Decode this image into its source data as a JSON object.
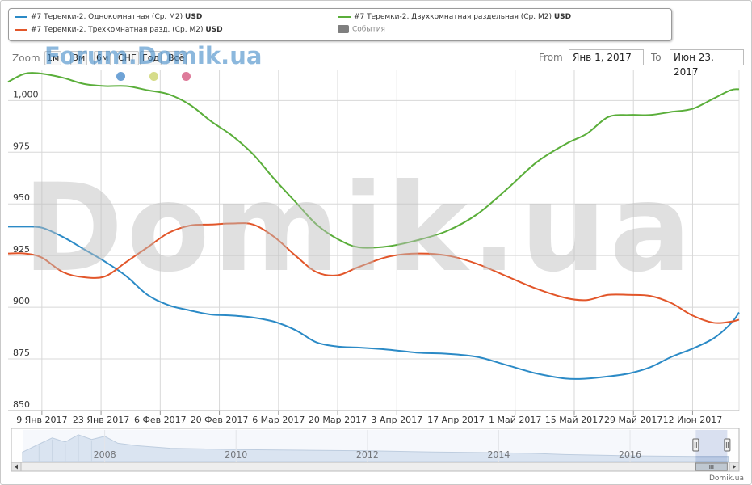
{
  "legend": {
    "items": [
      {
        "label": "#7 Теремки-2, Однокомнатная (Ср. M2)",
        "unit": "USD",
        "color": "#2b8ac6"
      },
      {
        "label": "#7 Теремки-2, Двухкомнатная раздельная (Ср. M2)",
        "unit": "USD",
        "color": "#5aae3a"
      },
      {
        "label": "#7 Теремки-2, Трехкомнатная разд. (Ср. M2)",
        "unit": "USD",
        "color": "#e2562a"
      },
      {
        "label": "События",
        "unit": "",
        "color": "#7f7f7f"
      }
    ]
  },
  "toolbar": {
    "zoom_label": "Zoom",
    "buttons": [
      "1м",
      "3м",
      "6м",
      "СНГ",
      "Год",
      "Всё"
    ],
    "from_label": "From",
    "from_value": "Янв 1, 2017",
    "to_label": "To",
    "to_value": "Июн 23, 2017"
  },
  "watermarks": {
    "forum": "Forum.Domik.ua",
    "big": "Domik.ua"
  },
  "event_dots": [
    {
      "color": "#6fa3d6"
    },
    {
      "color": "#d6dc8a"
    },
    {
      "color": "#de7b9a"
    }
  ],
  "credit": "Domik.ua",
  "chart_data": {
    "type": "line",
    "ylim": [
      850,
      1015
    ],
    "y_ticks": [
      850,
      875,
      900,
      925,
      950,
      975,
      1000
    ],
    "y_tick_labels": [
      "850",
      "875",
      "900",
      "925",
      "950",
      "975",
      "1,000"
    ],
    "x_range": [
      "2017-01-01",
      "2017-06-23"
    ],
    "x_ticks": [
      {
        "date": "2017-01-09",
        "label": "9 Янв 2017"
      },
      {
        "date": "2017-01-23",
        "label": "23 Янв 2017"
      },
      {
        "date": "2017-02-06",
        "label": "6 Фев 2017"
      },
      {
        "date": "2017-02-20",
        "label": "20 Фев 2017"
      },
      {
        "date": "2017-03-06",
        "label": "6 Мар 2017"
      },
      {
        "date": "2017-03-20",
        "label": "20 Мар 2017"
      },
      {
        "date": "2017-04-03",
        "label": "3 Апр 2017"
      },
      {
        "date": "2017-04-17",
        "label": "17 Апр 2017"
      },
      {
        "date": "2017-05-01",
        "label": "1 Май 2017"
      },
      {
        "date": "2017-05-15",
        "label": "15 Май 2017"
      },
      {
        "date": "2017-05-29",
        "label": "29 Май 2017"
      },
      {
        "date": "2017-06-12",
        "label": "12 Июн 2017"
      }
    ],
    "series": [
      {
        "name": "#7 Теремки-2, Однокомнатная (Ср. M2) USD",
        "color": "#2b8ac6",
        "points": [
          [
            "2017-01-01",
            939
          ],
          [
            "2017-01-05",
            939
          ],
          [
            "2017-01-09",
            938.5
          ],
          [
            "2017-01-14",
            934
          ],
          [
            "2017-01-19",
            928
          ],
          [
            "2017-01-24",
            922
          ],
          [
            "2017-01-29",
            915
          ],
          [
            "2017-02-03",
            906
          ],
          [
            "2017-02-08",
            901
          ],
          [
            "2017-02-13",
            898.5
          ],
          [
            "2017-02-18",
            896.5
          ],
          [
            "2017-02-23",
            896
          ],
          [
            "2017-02-28",
            895
          ],
          [
            "2017-03-05",
            893
          ],
          [
            "2017-03-10",
            889
          ],
          [
            "2017-03-15",
            883
          ],
          [
            "2017-03-20",
            881
          ],
          [
            "2017-03-25",
            880.5
          ],
          [
            "2017-04-01",
            879.5
          ],
          [
            "2017-04-08",
            878
          ],
          [
            "2017-04-15",
            877.5
          ],
          [
            "2017-04-22",
            876
          ],
          [
            "2017-04-29",
            872
          ],
          [
            "2017-05-06",
            868
          ],
          [
            "2017-05-13",
            865.5
          ],
          [
            "2017-05-18",
            865.5
          ],
          [
            "2017-05-23",
            866.5
          ],
          [
            "2017-05-28",
            868
          ],
          [
            "2017-06-02",
            871
          ],
          [
            "2017-06-07",
            876
          ],
          [
            "2017-06-12",
            880
          ],
          [
            "2017-06-17",
            885
          ],
          [
            "2017-06-21",
            892
          ],
          [
            "2017-06-23",
            897.5
          ]
        ]
      },
      {
        "name": "#7 Теремки-2, Двухкомнатная раздельная (Ср. M2) USD",
        "color": "#5aae3a",
        "points": [
          [
            "2017-01-01",
            1009
          ],
          [
            "2017-01-05",
            1013
          ],
          [
            "2017-01-09",
            1013
          ],
          [
            "2017-01-14",
            1011
          ],
          [
            "2017-01-19",
            1008
          ],
          [
            "2017-01-24",
            1007
          ],
          [
            "2017-01-29",
            1007
          ],
          [
            "2017-02-03",
            1005
          ],
          [
            "2017-02-08",
            1003
          ],
          [
            "2017-02-13",
            998
          ],
          [
            "2017-02-18",
            990
          ],
          [
            "2017-02-23",
            983
          ],
          [
            "2017-02-28",
            974
          ],
          [
            "2017-03-05",
            962
          ],
          [
            "2017-03-10",
            951
          ],
          [
            "2017-03-15",
            940
          ],
          [
            "2017-03-20",
            933
          ],
          [
            "2017-03-25",
            929
          ],
          [
            "2017-04-01",
            929.5
          ],
          [
            "2017-04-08",
            932.5
          ],
          [
            "2017-04-15",
            937
          ],
          [
            "2017-04-22",
            945
          ],
          [
            "2017-04-29",
            957
          ],
          [
            "2017-05-06",
            970
          ],
          [
            "2017-05-13",
            979
          ],
          [
            "2017-05-18",
            984
          ],
          [
            "2017-05-23",
            992
          ],
          [
            "2017-05-28",
            993
          ],
          [
            "2017-06-02",
            993
          ],
          [
            "2017-06-07",
            994.5
          ],
          [
            "2017-06-12",
            996
          ],
          [
            "2017-06-17",
            1001
          ],
          [
            "2017-06-21",
            1005
          ],
          [
            "2017-06-23",
            1005.5
          ]
        ]
      },
      {
        "name": "#7 Теремки-2, Трехкомнатная разд. (Ср. M2) USD",
        "color": "#e2562a",
        "points": [
          [
            "2017-01-01",
            926
          ],
          [
            "2017-01-05",
            926
          ],
          [
            "2017-01-09",
            924
          ],
          [
            "2017-01-14",
            917
          ],
          [
            "2017-01-19",
            914.5
          ],
          [
            "2017-01-24",
            915
          ],
          [
            "2017-01-29",
            922
          ],
          [
            "2017-02-03",
            929
          ],
          [
            "2017-02-08",
            936
          ],
          [
            "2017-02-13",
            939.5
          ],
          [
            "2017-02-18",
            940
          ],
          [
            "2017-02-23",
            940.5
          ],
          [
            "2017-02-28",
            940
          ],
          [
            "2017-03-05",
            934
          ],
          [
            "2017-03-10",
            925
          ],
          [
            "2017-03-15",
            917
          ],
          [
            "2017-03-20",
            915.5
          ],
          [
            "2017-03-25",
            919.5
          ],
          [
            "2017-04-01",
            924.5
          ],
          [
            "2017-04-08",
            926
          ],
          [
            "2017-04-15",
            925
          ],
          [
            "2017-04-22",
            921
          ],
          [
            "2017-04-29",
            915
          ],
          [
            "2017-05-06",
            909
          ],
          [
            "2017-05-13",
            904.5
          ],
          [
            "2017-05-18",
            903.5
          ],
          [
            "2017-05-23",
            906
          ],
          [
            "2017-05-28",
            906
          ],
          [
            "2017-06-02",
            905.5
          ],
          [
            "2017-06-07",
            902
          ],
          [
            "2017-06-12",
            896
          ],
          [
            "2017-06-17",
            892.5
          ],
          [
            "2017-06-21",
            893
          ],
          [
            "2017-06-23",
            894
          ]
        ]
      }
    ],
    "navigator": {
      "year_labels": [
        "2008",
        "2010",
        "2012",
        "2014",
        "2016"
      ],
      "x_range": [
        2006.75,
        2017.5
      ],
      "selection": [
        2017.0,
        2017.48
      ],
      "profile": [
        [
          2006.75,
          0.3
        ],
        [
          2007.0,
          0.55
        ],
        [
          2007.2,
          0.75
        ],
        [
          2007.4,
          0.62
        ],
        [
          2007.6,
          0.85
        ],
        [
          2007.8,
          0.7
        ],
        [
          2008.0,
          0.8
        ],
        [
          2008.2,
          0.58
        ],
        [
          2008.5,
          0.5
        ],
        [
          2009.0,
          0.42
        ],
        [
          2009.5,
          0.4
        ],
        [
          2010.0,
          0.38
        ],
        [
          2011.0,
          0.36
        ],
        [
          2012.0,
          0.34
        ],
        [
          2013.0,
          0.3
        ],
        [
          2014.0,
          0.28
        ],
        [
          2014.5,
          0.26
        ],
        [
          2015.0,
          0.22
        ],
        [
          2016.0,
          0.18
        ],
        [
          2017.0,
          0.16
        ],
        [
          2017.5,
          0.16
        ]
      ]
    }
  }
}
